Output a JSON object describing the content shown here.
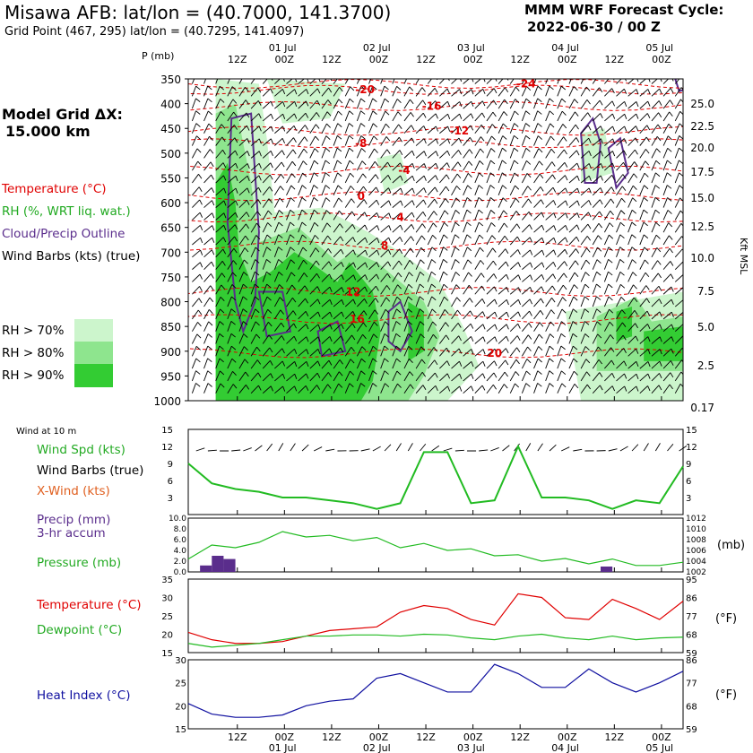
{
  "header": {
    "title": "Misawa AFB:  lat/lon = (40.7000, 141.3700)",
    "grid_point": "Grid Point (467, 295) lat/lon = (40.7295, 141.4097)",
    "forecast_line1": "MMM WRF Forecast Cycle:",
    "forecast_line2": "2022-06-30 / 00  Z"
  },
  "model_grid": {
    "line1": "Model Grid ΔX:",
    "line2": "15.000 km"
  },
  "colors": {
    "temperature": "#e00000",
    "rh": "#22bb22",
    "cloud": "#5a2d8c",
    "barb": "#000000",
    "xwind": "#e06020",
    "dewpoint": "#22bb22",
    "heat_index": "#1010a0",
    "rh70": "#ccf5cc",
    "rh80": "#8ee58e",
    "rh90": "#33cc33"
  },
  "legend_upper": [
    {
      "label": "Temperature (°C)",
      "color": "#e00000"
    },
    {
      "label": "RH (%, WRT liq. wat.)",
      "color": "#22aa22"
    },
    {
      "label": "Cloud/Precip Outline",
      "color": "#5a2d8c"
    },
    {
      "label": "Wind Barbs (kts) (true)",
      "color": "#000000"
    }
  ],
  "rh_legend": [
    "RH > 70%",
    "RH > 80%",
    "RH > 90%"
  ],
  "chart_data": [
    {
      "type": "heatmap",
      "ylabel": "P (mb)",
      "y2label": "Kft MSL",
      "pressure_levels": [
        350,
        400,
        450,
        500,
        550,
        600,
        650,
        700,
        750,
        800,
        850,
        900,
        950,
        1000
      ],
      "kft_ticks": [
        "25.0",
        "22.5",
        "20.0",
        "17.5",
        "15.0",
        "12.5",
        "10.0",
        "7.5",
        "5.0",
        "2.5",
        "0.17"
      ],
      "time_labels": [
        "12Z",
        "00Z",
        "12Z",
        "00Z",
        "12Z",
        "00Z",
        "12Z",
        "00Z",
        "12Z",
        "00Z"
      ],
      "date_labels": [
        "01 Jul",
        "02 Jul",
        "03 Jul",
        "04 Jul",
        "05 Jul"
      ],
      "temperature_labels": [
        {
          "value": "-24",
          "hour": 86,
          "p": 360
        },
        {
          "value": "-20",
          "hour": 45,
          "p": 372
        },
        {
          "value": "-16",
          "hour": 62,
          "p": 405
        },
        {
          "value": "-12",
          "hour": 69,
          "p": 455
        },
        {
          "value": "-8",
          "hour": 44,
          "p": 480
        },
        {
          "value": "-4",
          "hour": 55,
          "p": 535
        },
        {
          "value": "0",
          "hour": 44,
          "p": 587
        },
        {
          "value": "4",
          "hour": 54,
          "p": 630
        },
        {
          "value": "8",
          "hour": 50,
          "p": 687
        },
        {
          "value": "12",
          "hour": 42,
          "p": 780
        },
        {
          "value": "16",
          "hour": 43,
          "p": 835
        },
        {
          "value": "20",
          "hour": 78,
          "p": 904
        }
      ],
      "rh_areas": [
        {
          "level": 90,
          "points": [
            [
              7,
              1000
            ],
            [
              7,
              560
            ],
            [
              10,
              520
            ],
            [
              12,
              600
            ],
            [
              13,
              700
            ],
            [
              16,
              760
            ],
            [
              21,
              740
            ],
            [
              27,
              700
            ],
            [
              31,
              720
            ],
            [
              38,
              760
            ],
            [
              41,
              720
            ],
            [
              47,
              780
            ],
            [
              49,
              860
            ],
            [
              47,
              960
            ],
            [
              44,
              1000
            ]
          ]
        },
        {
          "level": 90,
          "points": [
            [
              56,
              800
            ],
            [
              60,
              820
            ],
            [
              60,
              900
            ],
            [
              56,
              920
            ]
          ]
        },
        {
          "level": 90,
          "points": [
            [
              109,
              820
            ],
            [
              113,
              810
            ],
            [
              113,
              870
            ],
            [
              109,
              880
            ]
          ]
        },
        {
          "level": 90,
          "points": [
            [
              116,
              860
            ],
            [
              126,
              850
            ],
            [
              126,
              920
            ],
            [
              116,
              920
            ]
          ]
        },
        {
          "level": 80,
          "points": [
            [
              7,
              1000
            ],
            [
              7,
              420
            ],
            [
              12,
              400
            ],
            [
              16,
              560
            ],
            [
              18,
              680
            ],
            [
              28,
              650
            ],
            [
              38,
              720
            ],
            [
              42,
              700
            ],
            [
              48,
              720
            ],
            [
              54,
              760
            ],
            [
              60,
              800
            ],
            [
              64,
              870
            ],
            [
              60,
              950
            ],
            [
              56,
              1000
            ]
          ]
        },
        {
          "level": 80,
          "points": [
            [
              104,
              830
            ],
            [
              114,
              790
            ],
            [
              118,
              840
            ],
            [
              126,
              830
            ],
            [
              126,
              940
            ],
            [
              104,
              940
            ]
          ]
        },
        {
          "level": 70,
          "points": [
            [
              7,
              1000
            ],
            [
              7,
              350
            ],
            [
              18,
              360
            ],
            [
              20,
              470
            ],
            [
              22,
              620
            ],
            [
              34,
              610
            ],
            [
              46,
              660
            ],
            [
              54,
              700
            ],
            [
              64,
              760
            ],
            [
              70,
              850
            ],
            [
              74,
              930
            ],
            [
              66,
              1000
            ]
          ]
        },
        {
          "level": 70,
          "points": [
            [
              20,
              350
            ],
            [
              40,
              360
            ],
            [
              36,
              430
            ],
            [
              24,
              440
            ]
          ]
        },
        {
          "level": 70,
          "points": [
            [
              48,
              510
            ],
            [
              54,
              500
            ],
            [
              56,
              560
            ],
            [
              50,
              580
            ]
          ]
        },
        {
          "level": 70,
          "points": [
            [
              96,
              820
            ],
            [
              126,
              780
            ],
            [
              126,
              1000
            ],
            [
              100,
              1000
            ]
          ]
        },
        {
          "level": 70,
          "points": [
            [
              100,
              460
            ],
            [
              106,
              450
            ],
            [
              108,
              540
            ],
            [
              100,
              560
            ]
          ]
        }
      ],
      "cloud_outlines": [
        [
          [
            10,
            640
          ],
          [
            11,
            430
          ],
          [
            16,
            420
          ],
          [
            18,
            660
          ],
          [
            17,
            800
          ],
          [
            14,
            860
          ],
          [
            12,
            800
          ]
        ],
        [
          [
            18,
            780
          ],
          [
            24,
            780
          ],
          [
            26,
            860
          ],
          [
            20,
            870
          ]
        ],
        [
          [
            33,
            860
          ],
          [
            38,
            840
          ],
          [
            40,
            900
          ],
          [
            34,
            910
          ]
        ],
        [
          [
            51,
            820
          ],
          [
            54,
            800
          ],
          [
            57,
            860
          ],
          [
            54,
            900
          ],
          [
            51,
            880
          ]
        ],
        [
          [
            100,
            460
          ],
          [
            103,
            430
          ],
          [
            105,
            480
          ],
          [
            104,
            560
          ],
          [
            101,
            560
          ]
        ],
        [
          [
            107,
            490
          ],
          [
            110,
            470
          ],
          [
            112,
            540
          ],
          [
            109,
            570
          ]
        ],
        [
          [
            124,
            350
          ],
          [
            127,
            345
          ],
          [
            127,
            370
          ],
          [
            125,
            375
          ]
        ]
      ]
    },
    {
      "type": "line",
      "title": "Wind at 10 m",
      "labels": [
        "Wind Spd (kts)",
        "Wind Barbs (true)",
        "X-Wind (kts)"
      ],
      "yticks": [
        3,
        6,
        9,
        12,
        15
      ],
      "ylim": [
        0,
        15
      ],
      "x": [
        0,
        6,
        12,
        18,
        24,
        30,
        36,
        42,
        48,
        54,
        60,
        66,
        72,
        78,
        84,
        90,
        96,
        102,
        108,
        114,
        120,
        126
      ],
      "series": [
        {
          "name": "Wind Spd (kts)",
          "values": [
            9,
            5.5,
            4.5,
            4,
            3,
            3,
            2.5,
            2,
            1,
            2,
            11,
            11,
            2,
            2.5,
            12,
            3,
            3,
            2.5,
            1,
            2.5,
            2,
            8.5
          ]
        }
      ]
    },
    {
      "type": "line",
      "labels": [
        "Precip (mm)",
        "3-hr accum",
        "Pressure (mb)"
      ],
      "y_left_ticks": [
        "0.0",
        "2.0",
        "4.0",
        "6.0",
        "8.0",
        "10.0"
      ],
      "y_right_ticks": [
        "1002",
        "1004",
        "1006",
        "1008",
        "1010",
        "1012"
      ],
      "y_right_label": "(mb)",
      "pressure_lim": [
        1002,
        1012
      ],
      "precip_lim": [
        0,
        10
      ],
      "x": [
        0,
        6,
        12,
        18,
        24,
        30,
        36,
        42,
        48,
        54,
        60,
        66,
        72,
        78,
        84,
        90,
        96,
        102,
        108,
        114,
        120,
        126
      ],
      "series": [
        {
          "name": "Pressure (mb)",
          "values": [
            1004.4,
            1007,
            1006.5,
            1007.5,
            1009.5,
            1008.5,
            1008.8,
            1007.8,
            1008.4,
            1006.5,
            1007.3,
            1006,
            1006.3,
            1005,
            1005.2,
            1004,
            1004.5,
            1003.5,
            1004.4,
            1003.2,
            1003.2,
            1003.8
          ]
        }
      ],
      "precip_bars": [
        {
          "hour": 4.5,
          "value": 1.2
        },
        {
          "hour": 7.5,
          "value": 3.0
        },
        {
          "hour": 10.5,
          "value": 2.4
        },
        {
          "hour": 106.5,
          "value": 1.0
        }
      ]
    },
    {
      "type": "line",
      "labels": [
        "Temperature (°C)",
        "Dewpoint (°C)"
      ],
      "y_left_ticks": [
        15,
        20,
        25,
        30,
        35
      ],
      "y_right_ticks": [
        59,
        68,
        77,
        86,
        95
      ],
      "y_right_label": "(°F)",
      "ylim": [
        15,
        35
      ],
      "x": [
        0,
        6,
        12,
        18,
        24,
        30,
        36,
        42,
        48,
        54,
        60,
        66,
        72,
        78,
        84,
        90,
        96,
        102,
        108,
        114,
        120,
        126
      ],
      "series": [
        {
          "name": "Temperature (°C)",
          "values": [
            20.5,
            18.5,
            17.5,
            17.5,
            18,
            19.5,
            21,
            21.5,
            22,
            26,
            27.8,
            27,
            24,
            22.5,
            31,
            30,
            24.5,
            24,
            29.5,
            27,
            24,
            29
          ]
        },
        {
          "name": "Dewpoint (°C)",
          "values": [
            17.5,
            16.5,
            17,
            17.5,
            18.5,
            19.5,
            19.5,
            19.8,
            19.8,
            19.5,
            20,
            19.8,
            19,
            18.5,
            19.5,
            20,
            19,
            18.5,
            19.5,
            18.5,
            19,
            19.2
          ]
        }
      ]
    },
    {
      "type": "line",
      "labels": [
        "Heat Index (°C)"
      ],
      "y_left_ticks": [
        15,
        20,
        25,
        30
      ],
      "y_right_ticks": [
        59,
        68,
        77,
        86
      ],
      "y_right_label": "(°F)",
      "ylim": [
        15,
        30
      ],
      "x": [
        0,
        6,
        12,
        18,
        24,
        30,
        36,
        42,
        48,
        54,
        60,
        66,
        72,
        78,
        84,
        90,
        96,
        102,
        108,
        114,
        120,
        126
      ],
      "series": [
        {
          "name": "Heat Index (°C)",
          "values": [
            20.5,
            18.2,
            17.5,
            17.5,
            18,
            20,
            21,
            21.5,
            26,
            27,
            25,
            23,
            23,
            29,
            27,
            24,
            24,
            28,
            25,
            23,
            25,
            27.5
          ]
        }
      ]
    }
  ]
}
